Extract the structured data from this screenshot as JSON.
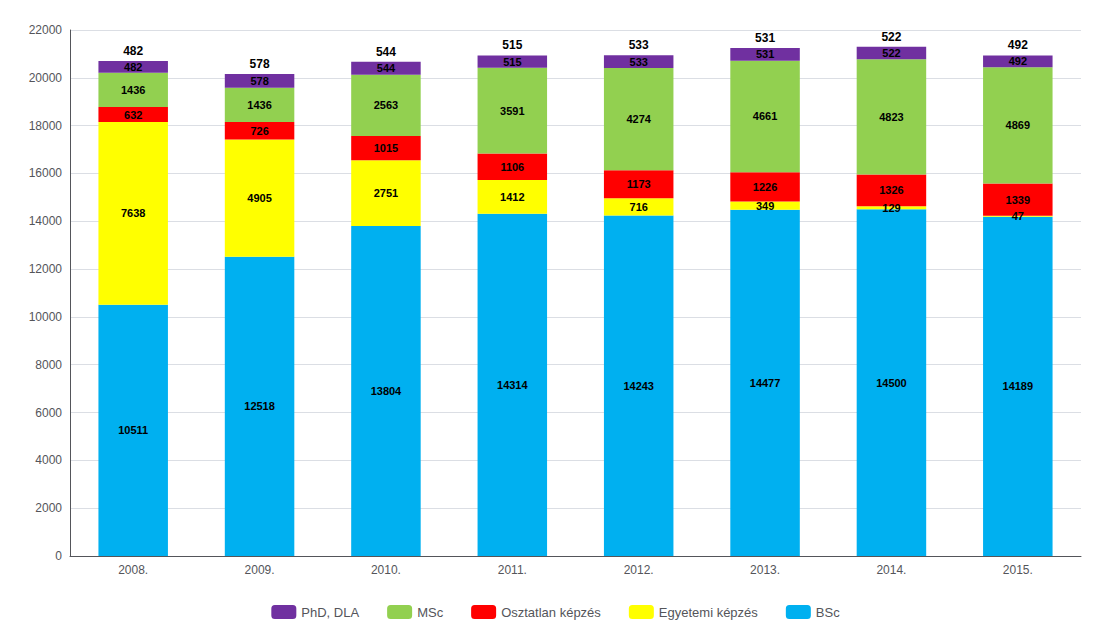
{
  "chart_data": {
    "type": "bar",
    "stacked": true,
    "categories": [
      "2008.",
      "2009.",
      "2010.",
      "2011.",
      "2012.",
      "2013.",
      "2014.",
      "2015."
    ],
    "series": [
      {
        "name": "BSc",
        "color": "#00B0F0",
        "values": [
          10511,
          12518,
          13804,
          14314,
          14243,
          14477,
          14500,
          14189
        ]
      },
      {
        "name": "Egyetemi képzés",
        "color": "#FFFF00",
        "values": [
          7638,
          4905,
          2751,
          1412,
          716,
          349,
          129,
          47
        ]
      },
      {
        "name": "Osztatlan képzés",
        "color": "#FF0000",
        "values": [
          632,
          726,
          1015,
          1106,
          1173,
          1226,
          1326,
          1339
        ]
      },
      {
        "name": "MSc",
        "color": "#92D050",
        "values": [
          1436,
          1436,
          2563,
          3591,
          4274,
          4661,
          4823,
          4869
        ]
      },
      {
        "name": "PhD, DLA",
        "color": "#7030A0",
        "values": [
          482,
          578,
          544,
          515,
          533,
          531,
          522,
          492
        ]
      }
    ],
    "annotations": [
      {
        "x": "2008.",
        "text": "482"
      },
      {
        "x": "2009.",
        "text": "578"
      },
      {
        "x": "2010.",
        "text": "544"
      },
      {
        "x": "2011.",
        "text": "515"
      },
      {
        "x": "2012.",
        "text": "533"
      },
      {
        "x": "2013.",
        "text": "531"
      },
      {
        "x": "2014.",
        "text": "522"
      },
      {
        "x": "2015.",
        "text": "492"
      }
    ],
    "data_labels": true,
    "ylim": [
      0,
      22000
    ],
    "yticks": [
      0,
      2000,
      4000,
      6000,
      8000,
      10000,
      12000,
      14000,
      16000,
      18000,
      20000,
      22000
    ],
    "grid": true,
    "legend": "bottom"
  }
}
